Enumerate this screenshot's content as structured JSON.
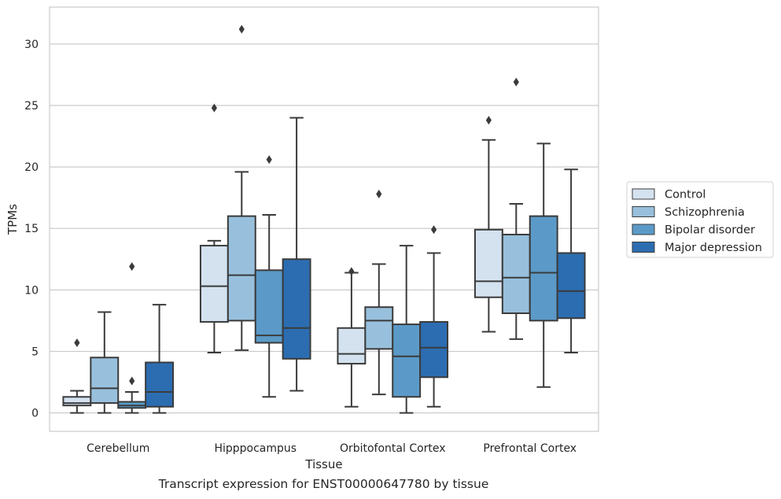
{
  "chart_data": {
    "type": "box",
    "xlabel": "Tissue",
    "ylabel": "TPMs",
    "ylim": [
      -1.5,
      33
    ],
    "yticks": [
      0,
      5,
      10,
      15,
      20,
      25,
      30
    ],
    "grid": "horizontal",
    "legend_position": "right",
    "categories": [
      "Cerebellum",
      "Hipppocampus",
      "Orbitofontal Cortex",
      "Prefrontal Cortex"
    ],
    "series": [
      {
        "name": "Control",
        "color": "#d4e2f0",
        "boxes": [
          {
            "whisker_low": 0.0,
            "q1": 0.6,
            "median": 0.8,
            "q3": 1.3,
            "whisker_high": 1.8,
            "outliers": [
              5.7
            ]
          },
          {
            "whisker_low": 4.9,
            "q1": 7.4,
            "median": 10.3,
            "q3": 13.6,
            "whisker_high": 14.0,
            "outliers": [
              24.8
            ]
          },
          {
            "whisker_low": 0.5,
            "q1": 4.0,
            "median": 4.8,
            "q3": 6.9,
            "whisker_high": 11.4,
            "outliers": [
              11.5
            ]
          },
          {
            "whisker_low": 6.6,
            "q1": 9.4,
            "median": 10.7,
            "q3": 14.9,
            "whisker_high": 22.2,
            "outliers": [
              23.8
            ]
          }
        ]
      },
      {
        "name": "Schizophrenia",
        "color": "#98c0dc",
        "boxes": [
          {
            "whisker_low": 0.0,
            "q1": 0.8,
            "median": 2.0,
            "q3": 4.5,
            "whisker_high": 8.2,
            "outliers": []
          },
          {
            "whisker_low": 5.1,
            "q1": 7.5,
            "median": 11.2,
            "q3": 16.0,
            "whisker_high": 19.6,
            "outliers": [
              31.2
            ]
          },
          {
            "whisker_low": 1.5,
            "q1": 5.2,
            "median": 7.5,
            "q3": 8.6,
            "whisker_high": 12.1,
            "outliers": [
              17.8
            ]
          },
          {
            "whisker_low": 6.0,
            "q1": 8.1,
            "median": 11.0,
            "q3": 14.5,
            "whisker_high": 17.0,
            "outliers": [
              26.9
            ]
          }
        ]
      },
      {
        "name": "Bipolar disorder",
        "color": "#5b9ac8",
        "boxes": [
          {
            "whisker_low": 0.0,
            "q1": 0.4,
            "median": 0.6,
            "q3": 0.9,
            "whisker_high": 1.7,
            "outliers": [
              2.6,
              11.9
            ]
          },
          {
            "whisker_low": 1.3,
            "q1": 5.7,
            "median": 6.3,
            "q3": 11.6,
            "whisker_high": 16.1,
            "outliers": [
              20.6
            ]
          },
          {
            "whisker_low": 0.0,
            "q1": 1.3,
            "median": 4.6,
            "q3": 7.2,
            "whisker_high": 13.6,
            "outliers": []
          },
          {
            "whisker_low": 2.1,
            "q1": 7.5,
            "median": 11.4,
            "q3": 16.0,
            "whisker_high": 21.9,
            "outliers": []
          }
        ]
      },
      {
        "name": "Major depression",
        "color": "#2c6db1",
        "boxes": [
          {
            "whisker_low": 0.0,
            "q1": 0.5,
            "median": 1.7,
            "q3": 4.1,
            "whisker_high": 8.8,
            "outliers": []
          },
          {
            "whisker_low": 1.8,
            "q1": 4.4,
            "median": 6.9,
            "q3": 12.5,
            "whisker_high": 24.0,
            "outliers": []
          },
          {
            "whisker_low": 0.5,
            "q1": 2.9,
            "median": 5.3,
            "q3": 7.4,
            "whisker_high": 13.0,
            "outliers": [
              14.9
            ]
          },
          {
            "whisker_low": 4.9,
            "q1": 7.7,
            "median": 9.9,
            "q3": 13.0,
            "whisker_high": 19.8,
            "outliers": []
          }
        ]
      }
    ],
    "caption": "Transcript expression for ENST00000647780 by tissue"
  }
}
